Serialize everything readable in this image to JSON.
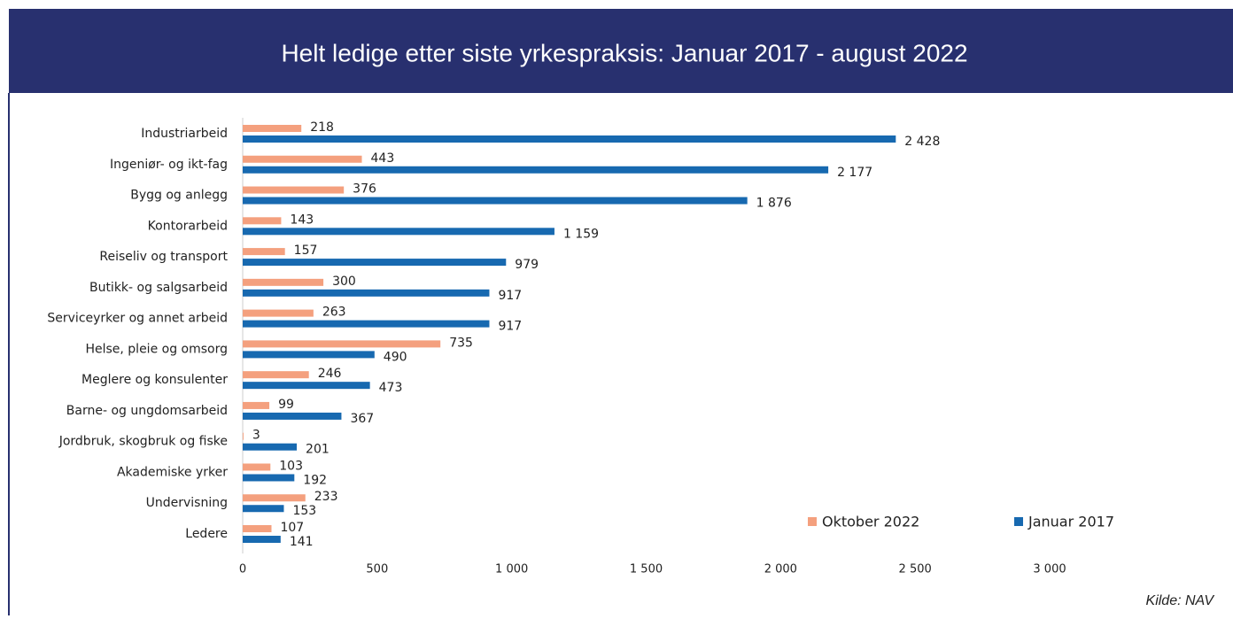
{
  "chart_data": {
    "type": "barh",
    "title": "Helt ledige etter siste yrkespraksis: Januar 2017 - august 2022",
    "source": "Kilde: NAV",
    "categories": [
      "Industriarbeid",
      "Ingeniør- og ikt-fag",
      "Bygg og anlegg",
      "Kontorarbeid",
      "Reiseliv og transport",
      "Butikk- og salgsarbeid",
      "Serviceyrker og annet arbeid",
      "Helse, pleie og omsorg",
      "Meglere og konsulenter",
      "Barne- og ungdomsarbeid",
      "Jordbruk, skogbruk og fiske",
      "Akademiske yrker",
      "Undervisning",
      "Ledere"
    ],
    "series": [
      {
        "name": "Oktober 2022",
        "color": "#f4a07e",
        "values": [
          218,
          443,
          376,
          143,
          157,
          300,
          263,
          735,
          246,
          99,
          3,
          103,
          233,
          107
        ]
      },
      {
        "name": "Januar 2017",
        "color": "#1769b0",
        "values": [
          2428,
          2177,
          1876,
          1159,
          979,
          917,
          917,
          490,
          473,
          367,
          201,
          192,
          153,
          141
        ],
        "value_labels": [
          "2 428",
          "2 177",
          "1 876",
          "1 159",
          "979",
          "917",
          "917",
          "490",
          "473",
          "367",
          "201",
          "192",
          "153",
          "141"
        ]
      }
    ],
    "xlim": [
      0,
      3000
    ],
    "xticks": [
      0,
      500,
      {
        "value": 1000,
        "label": "1 000"
      },
      {
        "value": 1500,
        "label": "1 500"
      },
      {
        "value": 2000,
        "label": "2 000"
      },
      {
        "value": 2500,
        "label": "2 500"
      },
      {
        "value": 3000,
        "label": "3 000"
      }
    ],
    "legend": "lower right",
    "grid": false
  }
}
